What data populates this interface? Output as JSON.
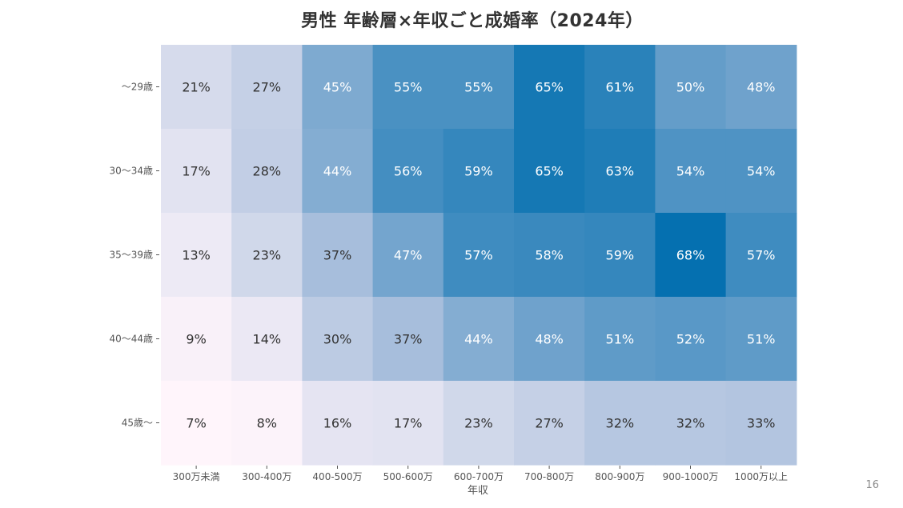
{
  "page_number": "16",
  "colors": {
    "scale_low": "#fff5fb",
    "scale_mid": "#a6bddb",
    "scale_high": "#0570b0",
    "text_dark": "#333333",
    "text_light": "#ffffff"
  },
  "chart_data": {
    "type": "heatmap",
    "title": "男性 年齢層×年収ごと成婚率（2024年）",
    "xlabel": "年収",
    "ylabel": "",
    "x_categories": [
      "300万未満",
      "300-400万",
      "400-500万",
      "500-600万",
      "600-700万",
      "700-800万",
      "800-900万",
      "900-1000万",
      "1000万以上"
    ],
    "y_categories": [
      "〜29歳",
      "30〜34歳",
      "35〜39歳",
      "40〜44歳",
      "45歳〜"
    ],
    "values": [
      [
        21,
        27,
        45,
        55,
        55,
        65,
        61,
        50,
        48
      ],
      [
        17,
        28,
        44,
        56,
        59,
        65,
        63,
        54,
        54
      ],
      [
        13,
        23,
        37,
        47,
        57,
        58,
        59,
        68,
        57
      ],
      [
        9,
        14,
        30,
        37,
        44,
        48,
        51,
        52,
        51
      ],
      [
        7,
        8,
        16,
        17,
        23,
        27,
        32,
        32,
        33
      ]
    ],
    "value_format": "%",
    "value_range": [
      7,
      68
    ]
  }
}
